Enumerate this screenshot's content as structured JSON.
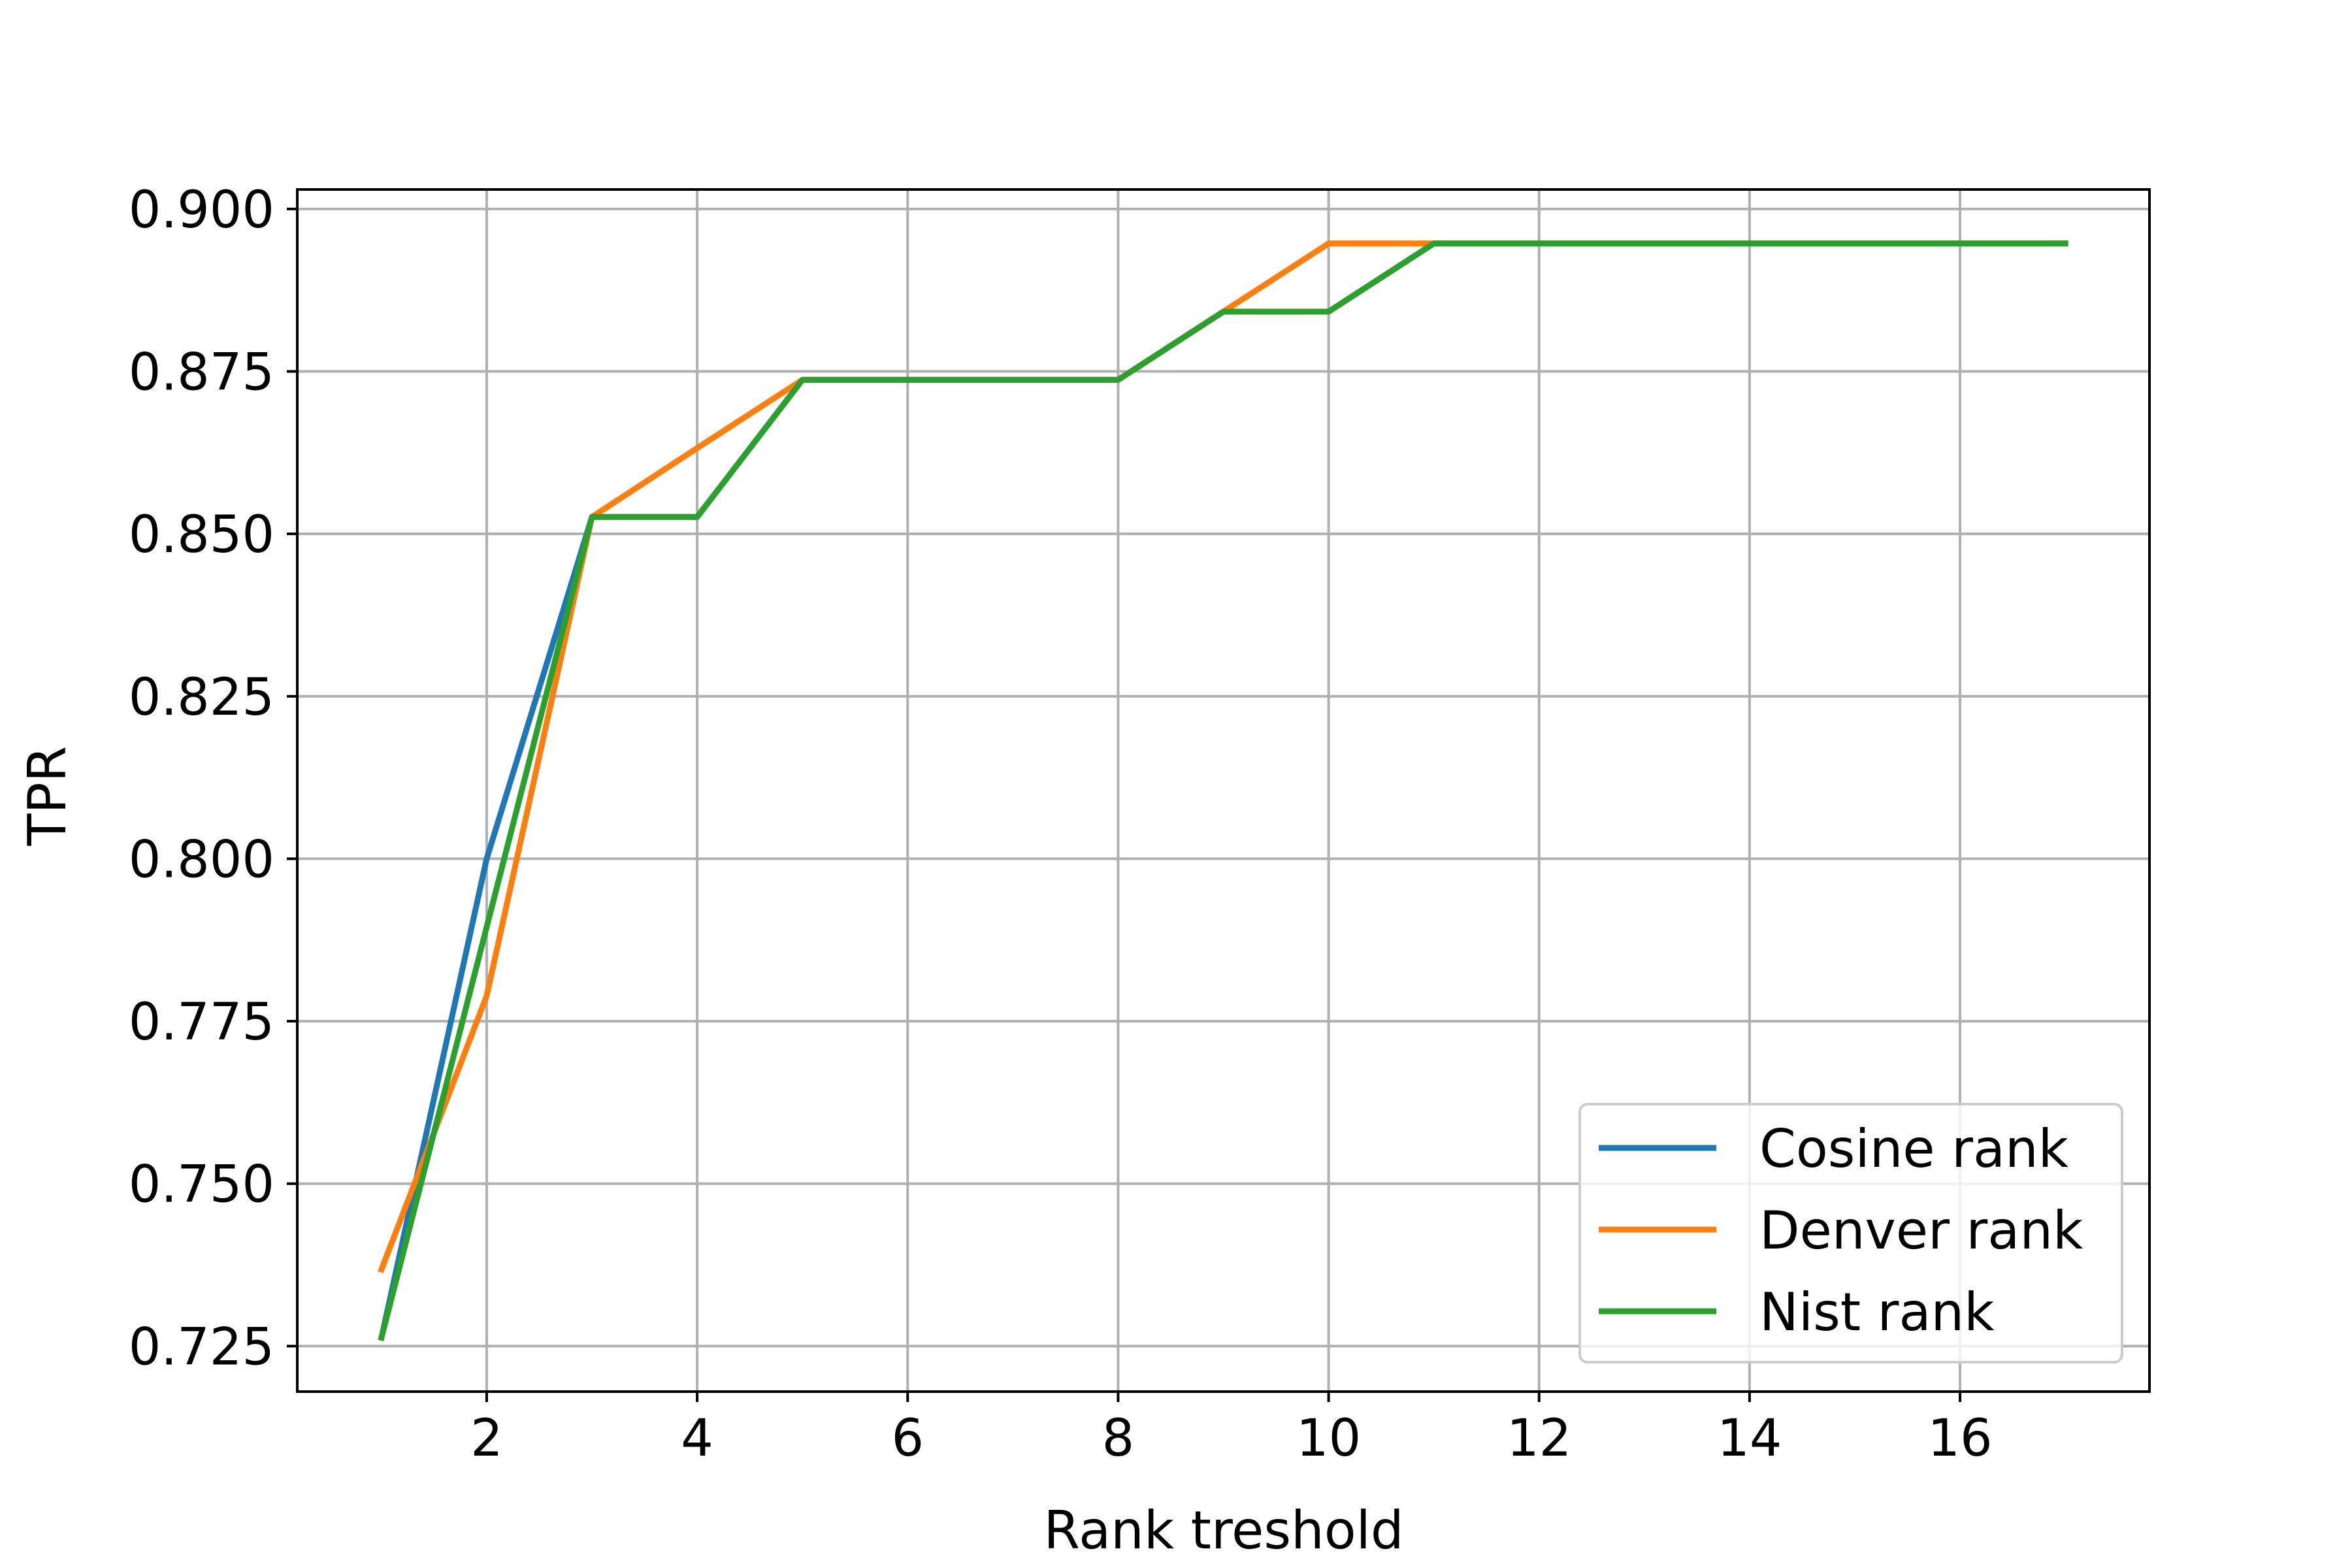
{
  "chart_data": {
    "type": "line",
    "title": "",
    "xlabel": "Rank treshold",
    "ylabel": "TPR",
    "xlim": [
      0.2,
      17.8
    ],
    "ylim": [
      0.718,
      0.903
    ],
    "xticks": [
      2,
      4,
      6,
      8,
      10,
      12,
      14,
      16
    ],
    "xtick_labels": [
      "2",
      "4",
      "6",
      "8",
      "10",
      "12",
      "14",
      "16"
    ],
    "yticks": [
      0.725,
      0.75,
      0.775,
      0.8,
      0.825,
      0.85,
      0.875,
      0.9
    ],
    "ytick_labels": [
      "0.725",
      "0.750",
      "0.775",
      "0.800",
      "0.825",
      "0.850",
      "0.875",
      "0.900"
    ],
    "grid": true,
    "legend_position": "lower-right",
    "x": [
      1,
      2,
      3,
      4,
      5,
      6,
      7,
      8,
      9,
      10,
      11,
      12,
      13,
      14,
      15,
      16,
      17
    ],
    "series": [
      {
        "name": "Cosine rank",
        "color": "#1f77b4",
        "values": [
          0.7263,
          0.8,
          0.8526,
          0.8526,
          0.8737,
          0.8737,
          0.8737,
          0.8737,
          0.8842,
          0.8842,
          0.8947,
          0.8947,
          0.8947,
          0.8947,
          0.8947,
          0.8947,
          0.8947
        ]
      },
      {
        "name": "Denver rank",
        "color": "#ff7f0e",
        "values": [
          0.7368,
          0.7789,
          0.8526,
          0.8632,
          0.8737,
          0.8737,
          0.8737,
          0.8737,
          0.8842,
          0.8947,
          0.8947,
          0.8947,
          0.8947,
          0.8947,
          0.8947,
          0.8947,
          0.8947
        ]
      },
      {
        "name": "Nist rank",
        "color": "#2ca02c",
        "values": [
          0.7263,
          0.7895,
          0.8526,
          0.8526,
          0.8737,
          0.8737,
          0.8737,
          0.8737,
          0.8842,
          0.8842,
          0.8947,
          0.8947,
          0.8947,
          0.8947,
          0.8947,
          0.8947,
          0.8947
        ]
      }
    ]
  }
}
